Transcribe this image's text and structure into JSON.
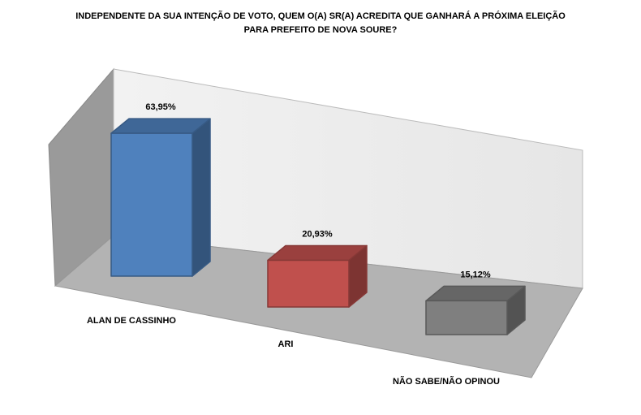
{
  "chart_data": {
    "type": "bar3d",
    "title": [
      "INDEPENDENTE DA  SUA INTENÇÃO DE VOTO, QUEM O(A) SR(A) ACREDITA QUE GANHARÁ A PRÓXIMA ELEIÇÃO",
      "PARA PREFEITO DE NOVA SOURE?"
    ],
    "categories": [
      "ALAN DE CASSINHO",
      "ARI",
      "NÃO SABE/NÃO OPINOU"
    ],
    "values": [
      63.95,
      20.93,
      15.12
    ],
    "value_labels": [
      "63,95%",
      "20,93%",
      "15,12%"
    ],
    "colors": [
      "#4f81bd",
      "#c0504d",
      "#7f7f7f"
    ]
  }
}
